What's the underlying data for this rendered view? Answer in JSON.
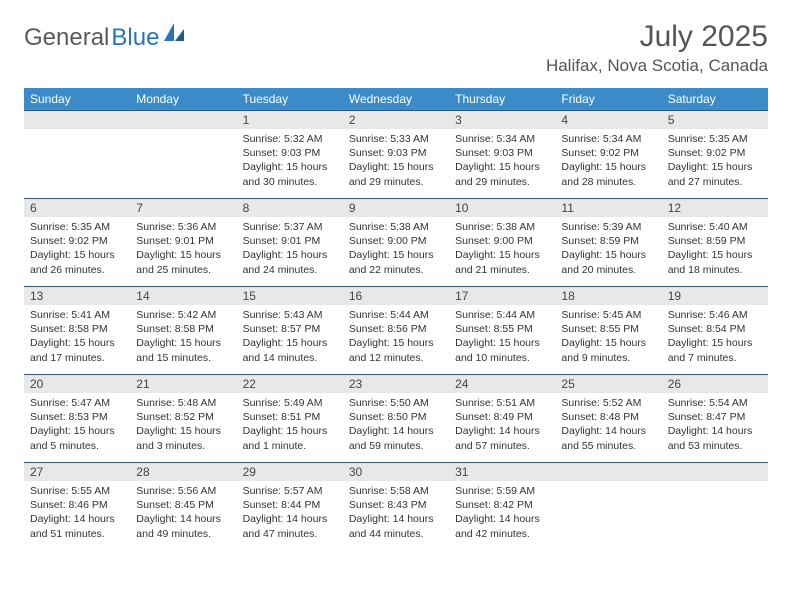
{
  "brand": {
    "part1": "General",
    "part2": "Blue"
  },
  "title": "July 2025",
  "location": "Halifax, Nova Scotia, Canada",
  "colors": {
    "header_bg": "#3b8bc9",
    "header_text": "#ffffff",
    "daynum_bg": "#e8e8e8",
    "border_top": "#2f5a85",
    "brand_gray": "#5a5a5a",
    "brand_blue": "#2a74b8"
  },
  "day_headers": [
    "Sunday",
    "Monday",
    "Tuesday",
    "Wednesday",
    "Thursday",
    "Friday",
    "Saturday"
  ],
  "weeks": [
    [
      null,
      null,
      {
        "n": "1",
        "sunrise": "Sunrise: 5:32 AM",
        "sunset": "Sunset: 9:03 PM",
        "day1": "Daylight: 15 hours",
        "day2": "and 30 minutes."
      },
      {
        "n": "2",
        "sunrise": "Sunrise: 5:33 AM",
        "sunset": "Sunset: 9:03 PM",
        "day1": "Daylight: 15 hours",
        "day2": "and 29 minutes."
      },
      {
        "n": "3",
        "sunrise": "Sunrise: 5:34 AM",
        "sunset": "Sunset: 9:03 PM",
        "day1": "Daylight: 15 hours",
        "day2": "and 29 minutes."
      },
      {
        "n": "4",
        "sunrise": "Sunrise: 5:34 AM",
        "sunset": "Sunset: 9:02 PM",
        "day1": "Daylight: 15 hours",
        "day2": "and 28 minutes."
      },
      {
        "n": "5",
        "sunrise": "Sunrise: 5:35 AM",
        "sunset": "Sunset: 9:02 PM",
        "day1": "Daylight: 15 hours",
        "day2": "and 27 minutes."
      }
    ],
    [
      {
        "n": "6",
        "sunrise": "Sunrise: 5:35 AM",
        "sunset": "Sunset: 9:02 PM",
        "day1": "Daylight: 15 hours",
        "day2": "and 26 minutes."
      },
      {
        "n": "7",
        "sunrise": "Sunrise: 5:36 AM",
        "sunset": "Sunset: 9:01 PM",
        "day1": "Daylight: 15 hours",
        "day2": "and 25 minutes."
      },
      {
        "n": "8",
        "sunrise": "Sunrise: 5:37 AM",
        "sunset": "Sunset: 9:01 PM",
        "day1": "Daylight: 15 hours",
        "day2": "and 24 minutes."
      },
      {
        "n": "9",
        "sunrise": "Sunrise: 5:38 AM",
        "sunset": "Sunset: 9:00 PM",
        "day1": "Daylight: 15 hours",
        "day2": "and 22 minutes."
      },
      {
        "n": "10",
        "sunrise": "Sunrise: 5:38 AM",
        "sunset": "Sunset: 9:00 PM",
        "day1": "Daylight: 15 hours",
        "day2": "and 21 minutes."
      },
      {
        "n": "11",
        "sunrise": "Sunrise: 5:39 AM",
        "sunset": "Sunset: 8:59 PM",
        "day1": "Daylight: 15 hours",
        "day2": "and 20 minutes."
      },
      {
        "n": "12",
        "sunrise": "Sunrise: 5:40 AM",
        "sunset": "Sunset: 8:59 PM",
        "day1": "Daylight: 15 hours",
        "day2": "and 18 minutes."
      }
    ],
    [
      {
        "n": "13",
        "sunrise": "Sunrise: 5:41 AM",
        "sunset": "Sunset: 8:58 PM",
        "day1": "Daylight: 15 hours",
        "day2": "and 17 minutes."
      },
      {
        "n": "14",
        "sunrise": "Sunrise: 5:42 AM",
        "sunset": "Sunset: 8:58 PM",
        "day1": "Daylight: 15 hours",
        "day2": "and 15 minutes."
      },
      {
        "n": "15",
        "sunrise": "Sunrise: 5:43 AM",
        "sunset": "Sunset: 8:57 PM",
        "day1": "Daylight: 15 hours",
        "day2": "and 14 minutes."
      },
      {
        "n": "16",
        "sunrise": "Sunrise: 5:44 AM",
        "sunset": "Sunset: 8:56 PM",
        "day1": "Daylight: 15 hours",
        "day2": "and 12 minutes."
      },
      {
        "n": "17",
        "sunrise": "Sunrise: 5:44 AM",
        "sunset": "Sunset: 8:55 PM",
        "day1": "Daylight: 15 hours",
        "day2": "and 10 minutes."
      },
      {
        "n": "18",
        "sunrise": "Sunrise: 5:45 AM",
        "sunset": "Sunset: 8:55 PM",
        "day1": "Daylight: 15 hours",
        "day2": "and 9 minutes."
      },
      {
        "n": "19",
        "sunrise": "Sunrise: 5:46 AM",
        "sunset": "Sunset: 8:54 PM",
        "day1": "Daylight: 15 hours",
        "day2": "and 7 minutes."
      }
    ],
    [
      {
        "n": "20",
        "sunrise": "Sunrise: 5:47 AM",
        "sunset": "Sunset: 8:53 PM",
        "day1": "Daylight: 15 hours",
        "day2": "and 5 minutes."
      },
      {
        "n": "21",
        "sunrise": "Sunrise: 5:48 AM",
        "sunset": "Sunset: 8:52 PM",
        "day1": "Daylight: 15 hours",
        "day2": "and 3 minutes."
      },
      {
        "n": "22",
        "sunrise": "Sunrise: 5:49 AM",
        "sunset": "Sunset: 8:51 PM",
        "day1": "Daylight: 15 hours",
        "day2": "and 1 minute."
      },
      {
        "n": "23",
        "sunrise": "Sunrise: 5:50 AM",
        "sunset": "Sunset: 8:50 PM",
        "day1": "Daylight: 14 hours",
        "day2": "and 59 minutes."
      },
      {
        "n": "24",
        "sunrise": "Sunrise: 5:51 AM",
        "sunset": "Sunset: 8:49 PM",
        "day1": "Daylight: 14 hours",
        "day2": "and 57 minutes."
      },
      {
        "n": "25",
        "sunrise": "Sunrise: 5:52 AM",
        "sunset": "Sunset: 8:48 PM",
        "day1": "Daylight: 14 hours",
        "day2": "and 55 minutes."
      },
      {
        "n": "26",
        "sunrise": "Sunrise: 5:54 AM",
        "sunset": "Sunset: 8:47 PM",
        "day1": "Daylight: 14 hours",
        "day2": "and 53 minutes."
      }
    ],
    [
      {
        "n": "27",
        "sunrise": "Sunrise: 5:55 AM",
        "sunset": "Sunset: 8:46 PM",
        "day1": "Daylight: 14 hours",
        "day2": "and 51 minutes."
      },
      {
        "n": "28",
        "sunrise": "Sunrise: 5:56 AM",
        "sunset": "Sunset: 8:45 PM",
        "day1": "Daylight: 14 hours",
        "day2": "and 49 minutes."
      },
      {
        "n": "29",
        "sunrise": "Sunrise: 5:57 AM",
        "sunset": "Sunset: 8:44 PM",
        "day1": "Daylight: 14 hours",
        "day2": "and 47 minutes."
      },
      {
        "n": "30",
        "sunrise": "Sunrise: 5:58 AM",
        "sunset": "Sunset: 8:43 PM",
        "day1": "Daylight: 14 hours",
        "day2": "and 44 minutes."
      },
      {
        "n": "31",
        "sunrise": "Sunrise: 5:59 AM",
        "sunset": "Sunset: 8:42 PM",
        "day1": "Daylight: 14 hours",
        "day2": "and 42 minutes."
      },
      null,
      null
    ]
  ]
}
